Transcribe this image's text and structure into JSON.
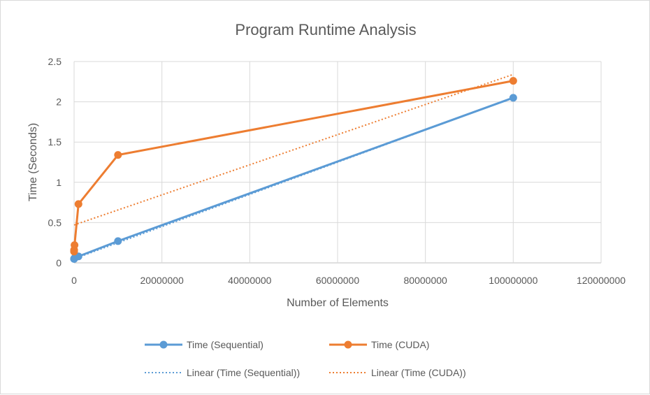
{
  "chart_data": {
    "type": "line",
    "title": "Program Runtime Analysis",
    "xlabel": "Number of Elements",
    "ylabel": "Time (Seconds)",
    "xlim": [
      0,
      120000000
    ],
    "ylim": [
      0,
      2.5
    ],
    "xticks": [
      0,
      20000000,
      40000000,
      60000000,
      80000000,
      100000000,
      120000000
    ],
    "xtick_labels": [
      "0",
      "20000000",
      "40000000",
      "60000000",
      "80000000",
      "100000000",
      "120000000"
    ],
    "yticks": [
      0,
      0.5,
      1,
      1.5,
      2,
      2.5
    ],
    "ytick_labels": [
      "0",
      "0.5",
      "1",
      "1.5",
      "2",
      "2.5"
    ],
    "grid": true,
    "legend_position": "bottom",
    "series": [
      {
        "name": "Time (Sequential)",
        "color": "#5b9bd5",
        "style": "solid-markers",
        "x": [
          100,
          1000,
          10000,
          100000,
          1000000,
          10000000,
          100000000
        ],
        "y": [
          0.05,
          0.05,
          0.05,
          0.06,
          0.08,
          0.27,
          2.05
        ]
      },
      {
        "name": "Time (CUDA)",
        "color": "#ed7d31",
        "style": "solid-markers",
        "x": [
          100,
          1000,
          10000,
          100000,
          1000000,
          10000000,
          100000000
        ],
        "y": [
          0.14,
          0.15,
          0.16,
          0.22,
          0.73,
          1.34,
          2.26
        ]
      }
    ],
    "trendlines": [
      {
        "name": "Linear  (Time (Sequential))",
        "color": "#5b9bd5",
        "style": "dotted",
        "x": [
          0,
          100000000
        ],
        "y": [
          0.05,
          2.05
        ]
      },
      {
        "name": "Linear  (Time (CUDA))",
        "color": "#ed7d31",
        "style": "dotted",
        "x": [
          0,
          100000000
        ],
        "y": [
          0.47,
          2.34
        ]
      }
    ]
  }
}
